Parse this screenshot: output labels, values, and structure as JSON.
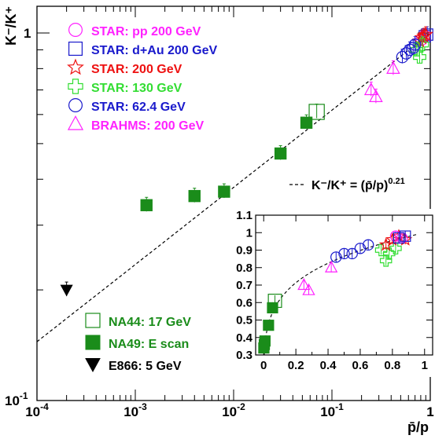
{
  "chart_data": [
    {
      "type": "scatter",
      "title": "",
      "xlabel": "p̄/p",
      "ylabel": "K⁻/K⁺",
      "xscale": "log",
      "yscale": "log",
      "xlim": [
        0.0001,
        1.0
      ],
      "ylim": [
        0.1,
        1.0
      ],
      "grid": false,
      "legend_placement": "left",
      "x_tick_labels": [
        {
          "base": "10",
          "exp": "-4"
        },
        {
          "base": "10",
          "exp": "-3"
        },
        {
          "base": "10",
          "exp": "-2"
        },
        {
          "base": "10",
          "exp": "-1"
        },
        {
          "base": "1",
          "exp": ""
        }
      ],
      "y_tick_labels": [
        {
          "base": "10",
          "exp": "-1"
        },
        {
          "base": "1",
          "exp": ""
        }
      ],
      "series": [
        {
          "name": "STAR: pp 200 GeV",
          "color": "#ff22ff",
          "marker": "open-circle",
          "points": [
            [
              0.82,
              0.96
            ],
            [
              0.88,
              0.98
            ]
          ]
        },
        {
          "name": "STAR: d+Au 200 GeV",
          "color": "#1a1acc",
          "marker": "open-square",
          "points": [
            [
              0.88,
              0.98
            ],
            [
              0.93,
              0.99
            ]
          ]
        },
        {
          "name": "STAR: 200 GeV",
          "color": "#ee1111",
          "marker": "open-star",
          "points": [
            [
              0.78,
              0.95
            ],
            [
              0.82,
              0.97
            ],
            [
              0.86,
              0.98
            ],
            [
              0.9,
              0.99
            ]
          ]
        },
        {
          "name": "STAR: 130 GeV",
          "color": "#33dd33",
          "marker": "open-cross",
          "points": [
            [
              0.73,
              0.9
            ],
            [
              0.78,
              0.86
            ],
            [
              0.83,
              0.93
            ]
          ]
        },
        {
          "name": "STAR: 62.4 GeV",
          "color": "#1a1acc",
          "marker": "open-circle",
          "points": [
            [
              0.52,
              0.86
            ],
            [
              0.57,
              0.88
            ],
            [
              0.62,
              0.9
            ],
            [
              0.67,
              0.91
            ],
            [
              0.7,
              0.93
            ]
          ]
        },
        {
          "name": "BRAHMS: 200 GeV",
          "color": "#ff22ff",
          "marker": "open-triangle",
          "points": [
            [
              0.25,
              0.7
            ],
            [
              0.28,
              0.67
            ],
            [
              0.42,
              0.8
            ]
          ]
        },
        {
          "name": "NA44: 17 GeV",
          "color": "#1a8c1a",
          "marker": "open-square",
          "points": [
            [
              0.07,
              0.61
            ]
          ]
        },
        {
          "name": "NA49: E scan",
          "color": "#1a8c1a",
          "marker": "filled-square",
          "points": [
            [
              0.0013,
              0.34
            ],
            [
              0.004,
              0.36
            ],
            [
              0.008,
              0.37
            ],
            [
              0.03,
              0.47
            ],
            [
              0.055,
              0.57
            ]
          ]
        },
        {
          "name": "E866: 5 GeV",
          "color": "#000000",
          "marker": "filled-triangle-down",
          "points": [
            [
              0.0002,
              0.2
            ]
          ]
        }
      ],
      "fit_curve": {
        "label_prefix": "K⁻/K⁺ = (p̄/p)",
        "exponent": "0.21",
        "value": 0.21
      }
    },
    {
      "type": "scatter",
      "title": "",
      "xlabel": "",
      "ylabel": "",
      "xscale": "linear",
      "yscale": "linear",
      "xlim": [
        -0.05,
        1.05
      ],
      "ylim": [
        0.3,
        1.1
      ],
      "grid": false,
      "x_ticks": [
        "0",
        "0.2",
        "0.4",
        "0.6",
        "0.8",
        "1"
      ],
      "y_ticks": [
        "0.3",
        "0.4",
        "0.5",
        "0.6",
        "0.7",
        "0.8",
        "0.9",
        "1",
        "1.1"
      ],
      "series": [
        {
          "name": "NA49: E scan",
          "points": [
            [
              0.001,
              0.34
            ],
            [
              0.004,
              0.36
            ],
            [
              0.008,
              0.38
            ],
            [
              0.03,
              0.47
            ],
            [
              0.055,
              0.57
            ]
          ]
        },
        {
          "name": "NA44: 17 GeV",
          "points": [
            [
              0.07,
              0.61
            ]
          ]
        },
        {
          "name": "BRAHMS: 200 GeV",
          "points": [
            [
              0.25,
              0.7
            ],
            [
              0.28,
              0.67
            ],
            [
              0.42,
              0.8
            ]
          ]
        },
        {
          "name": "STAR: 62.4 GeV",
          "points": [
            [
              0.45,
              0.86
            ],
            [
              0.5,
              0.88
            ],
            [
              0.55,
              0.88
            ],
            [
              0.6,
              0.91
            ],
            [
              0.65,
              0.93
            ]
          ]
        },
        {
          "name": "STAR: 130 GeV",
          "points": [
            [
              0.73,
              0.9
            ],
            [
              0.76,
              0.84
            ],
            [
              0.78,
              0.88
            ],
            [
              0.82,
              0.91
            ]
          ]
        },
        {
          "name": "STAR: 200 GeV",
          "points": [
            [
              0.76,
              0.93
            ],
            [
              0.8,
              0.96
            ],
            [
              0.84,
              0.98
            ],
            [
              0.88,
              0.96
            ]
          ]
        },
        {
          "name": "STAR: pp 200 GeV",
          "points": [
            [
              0.82,
              0.98
            ],
            [
              0.86,
              0.97
            ]
          ]
        },
        {
          "name": "STAR: d+Au 200 GeV",
          "points": [
            [
              0.84,
              0.97
            ],
            [
              0.88,
              0.98
            ]
          ]
        }
      ]
    }
  ]
}
